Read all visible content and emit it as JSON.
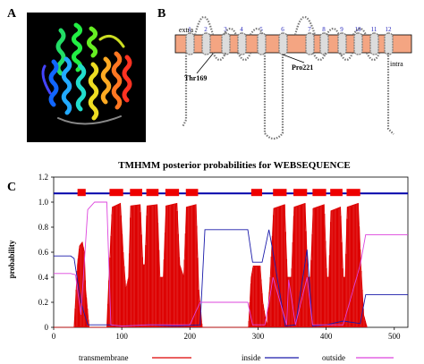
{
  "figure": {
    "panel_labels": {
      "a": "A",
      "b": "B",
      "c": "C"
    }
  },
  "topology": {
    "extra_label": "extra",
    "intra_label": "intra",
    "helix_numbers": [
      "1",
      "2",
      "3",
      "4",
      "5",
      "6",
      "7",
      "8",
      "9",
      "10",
      "11",
      "12"
    ],
    "residue_labels": [
      "Thr169",
      "Pro221"
    ],
    "membrane_color": "#f4a582"
  },
  "chart_data": {
    "type": "line",
    "title": "TMHMM posterior probabilities for WEBSEQUENCE",
    "xlabel": "",
    "ylabel": "probability",
    "xlim": [
      0,
      520
    ],
    "ylim": [
      0,
      1.2
    ],
    "x_ticks": [
      0,
      100,
      200,
      300,
      400,
      500
    ],
    "y_ticks": [
      0,
      0.2,
      0.4,
      0.6,
      0.8,
      1.0,
      1.2
    ],
    "y_tick_labels": [
      "0",
      "0.2",
      "0.4",
      "0.6",
      "0.8",
      "1.0",
      "1.2"
    ],
    "legend": [
      "transmembrane",
      "inside",
      "outside"
    ],
    "legend_position": "bottom",
    "colors": {
      "transmembrane": "#dd0000",
      "inside": "#1a1aaa",
      "outside": "#dd44dd",
      "topology_line": "#0000aa",
      "topology_box": "#ee0000"
    },
    "topology_y": 1.07,
    "tm_segments": [
      [
        35,
        47
      ],
      [
        82,
        102
      ],
      [
        112,
        130
      ],
      [
        136,
        154
      ],
      [
        164,
        184
      ],
      [
        194,
        212
      ],
      [
        290,
        306
      ],
      [
        322,
        342
      ],
      [
        352,
        372
      ],
      [
        380,
        400
      ],
      [
        406,
        424
      ],
      [
        430,
        450
      ]
    ],
    "series": [
      {
        "name": "transmembrane",
        "points": [
          [
            0,
            0
          ],
          [
            30,
            0
          ],
          [
            35,
            0.5
          ],
          [
            38,
            0.65
          ],
          [
            42,
            0.68
          ],
          [
            45,
            0.6
          ],
          [
            47,
            0.3
          ],
          [
            52,
            0
          ],
          [
            78,
            0
          ],
          [
            82,
            0.5
          ],
          [
            86,
            0.96
          ],
          [
            98,
            0.99
          ],
          [
            102,
            0.6
          ],
          [
            106,
            0.3
          ],
          [
            110,
            0.4
          ],
          [
            113,
            0.97
          ],
          [
            127,
            0.98
          ],
          [
            131,
            0.5
          ],
          [
            134,
            0.5
          ],
          [
            137,
            0.97
          ],
          [
            152,
            0.98
          ],
          [
            156,
            0.4
          ],
          [
            161,
            0.4
          ],
          [
            165,
            0.97
          ],
          [
            181,
            0.99
          ],
          [
            185,
            0.5
          ],
          [
            191,
            0.4
          ],
          [
            195,
            0.96
          ],
          [
            209,
            0.98
          ],
          [
            213,
            0.3
          ],
          [
            218,
            0
          ],
          [
            286,
            0
          ],
          [
            290,
            0.4
          ],
          [
            293,
            0.49
          ],
          [
            303,
            0.49
          ],
          [
            307,
            0.2
          ],
          [
            313,
            0
          ],
          [
            318,
            0.4
          ],
          [
            323,
            0.95
          ],
          [
            339,
            0.98
          ],
          [
            343,
            0.4
          ],
          [
            349,
            0.4
          ],
          [
            353,
            0.96
          ],
          [
            369,
            0.99
          ],
          [
            373,
            0.4
          ],
          [
            377,
            0.4
          ],
          [
            381,
            0.95
          ],
          [
            397,
            0.98
          ],
          [
            401,
            0.4
          ],
          [
            404,
            0.4
          ],
          [
            407,
            0.93
          ],
          [
            421,
            0.96
          ],
          [
            425,
            0.4
          ],
          [
            428,
            0.4
          ],
          [
            431,
            0.96
          ],
          [
            447,
            0.99
          ],
          [
            451,
            0.5
          ],
          [
            455,
            0.1
          ],
          [
            460,
            0
          ]
        ]
      },
      {
        "name": "inside",
        "points": [
          [
            0,
            0.57
          ],
          [
            25,
            0.57
          ],
          [
            30,
            0.55
          ],
          [
            40,
            0.2
          ],
          [
            50,
            0.02
          ],
          [
            80,
            0.02
          ],
          [
            100,
            0.01
          ],
          [
            140,
            0.02
          ],
          [
            180,
            0.01
          ],
          [
            215,
            0.02
          ],
          [
            222,
            0.78
          ],
          [
            285,
            0.78
          ],
          [
            292,
            0.52
          ],
          [
            306,
            0.52
          ],
          [
            316,
            0.78
          ],
          [
            322,
            0.6
          ],
          [
            340,
            0.01
          ],
          [
            355,
            0.02
          ],
          [
            372,
            0.62
          ],
          [
            380,
            0.01
          ],
          [
            400,
            0.02
          ],
          [
            425,
            0.05
          ],
          [
            450,
            0.03
          ],
          [
            458,
            0.26
          ],
          [
            520,
            0.26
          ]
        ]
      },
      {
        "name": "outside",
        "points": [
          [
            0,
            0.43
          ],
          [
            25,
            0.43
          ],
          [
            32,
            0.42
          ],
          [
            40,
            0.1
          ],
          [
            50,
            0.94
          ],
          [
            60,
            1.0
          ],
          [
            78,
            1.0
          ],
          [
            84,
            0.02
          ],
          [
            100,
            0.01
          ],
          [
            140,
            0.02
          ],
          [
            200,
            0.02
          ],
          [
            215,
            0.2
          ],
          [
            225,
            0.2
          ],
          [
            285,
            0.2
          ],
          [
            292,
            0.02
          ],
          [
            310,
            0.02
          ],
          [
            316,
            0.2
          ],
          [
            322,
            0.4
          ],
          [
            342,
            0.02
          ],
          [
            345,
            0.38
          ],
          [
            355,
            0.02
          ],
          [
            372,
            0.4
          ],
          [
            380,
            0.02
          ],
          [
            400,
            0.02
          ],
          [
            425,
            0.02
          ],
          [
            450,
            0.5
          ],
          [
            458,
            0.74
          ],
          [
            520,
            0.74
          ]
        ]
      }
    ]
  }
}
